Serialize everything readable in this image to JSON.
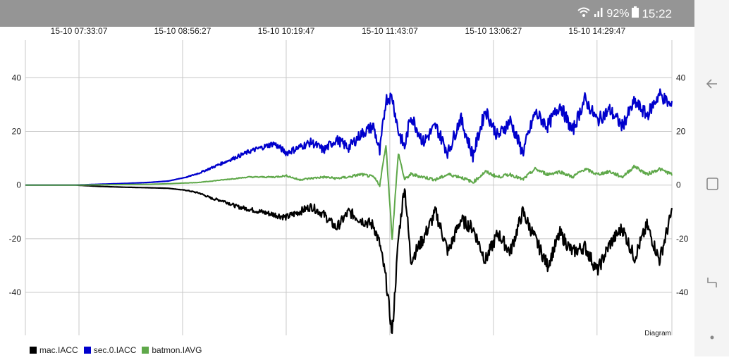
{
  "status": {
    "battery": "92%",
    "time": "15:22"
  },
  "colors": {
    "status_bg": "#959595",
    "nav_bg": "#f4f4f4",
    "grid": "#c8c8c8",
    "axis_text": "#222222"
  },
  "icons": {
    "wifi": "wifi-icon",
    "signal": "signal-icon",
    "battery": "battery-icon",
    "back": "back-arrow-icon",
    "recents": "recents-icon",
    "home": "home-icon",
    "menu_dot": "dot-icon"
  },
  "chart_data": {
    "type": "line",
    "title": "",
    "annotation": "Diagram",
    "x_tick_labels": [
      "15-10 07:33:07",
      "15-10 08:56:27",
      "15-10 10:19:47",
      "15-10 11:43:07",
      "15-10 13:06:27",
      "15-10 14:29:47"
    ],
    "x_range": [
      "15-10 06:50",
      "15-10 15:30"
    ],
    "y_ticks": [
      -40,
      -20,
      0,
      20,
      40
    ],
    "ylim": [
      -56,
      54
    ],
    "grid": true,
    "legend_position": "bottom-left",
    "series": [
      {
        "name": "mac.IACC",
        "color": "#000000",
        "x": [
          "06:50",
          "07:30",
          "07:50",
          "08:10",
          "08:30",
          "08:45",
          "09:00",
          "09:10",
          "09:20",
          "09:30",
          "09:40",
          "09:50",
          "10:00",
          "10:10",
          "10:20",
          "10:30",
          "10:40",
          "10:50",
          "11:00",
          "11:10",
          "11:20",
          "11:30",
          "11:35",
          "11:40",
          "11:45",
          "11:50",
          "11:55",
          "12:00",
          "12:10",
          "12:20",
          "12:30",
          "12:40",
          "12:50",
          "13:00",
          "13:10",
          "13:20",
          "13:30",
          "13:40",
          "13:50",
          "14:00",
          "14:10",
          "14:20",
          "14:30",
          "14:40",
          "14:50",
          "15:00",
          "15:10",
          "15:20",
          "15:30"
        ],
        "y": [
          0,
          0,
          -0.5,
          -0.8,
          -1,
          -1.2,
          -2,
          -3,
          -5,
          -6,
          -8,
          -9,
          -10,
          -11,
          -12,
          -10,
          -8,
          -11,
          -16,
          -10,
          -13,
          -15,
          -22,
          -35,
          -56,
          -20,
          0,
          -28,
          -20,
          -10,
          -25,
          -13,
          -16,
          -28,
          -18,
          -25,
          -10,
          -20,
          -30,
          -18,
          -25,
          -23,
          -32,
          -22,
          -16,
          -27,
          -15,
          -28,
          -10
        ]
      },
      {
        "name": "sec.0.IACC",
        "color": "#0000cc",
        "x": [
          "06:50",
          "07:30",
          "07:50",
          "08:10",
          "08:30",
          "08:45",
          "09:00",
          "09:10",
          "09:20",
          "09:30",
          "09:40",
          "09:50",
          "10:00",
          "10:10",
          "10:20",
          "10:30",
          "10:40",
          "10:50",
          "11:00",
          "11:10",
          "11:20",
          "11:30",
          "11:35",
          "11:40",
          "11:45",
          "11:50",
          "11:55",
          "12:00",
          "12:10",
          "12:20",
          "12:30",
          "12:40",
          "12:50",
          "13:00",
          "13:10",
          "13:20",
          "13:30",
          "13:40",
          "13:50",
          "14:00",
          "14:10",
          "14:20",
          "14:30",
          "14:40",
          "14:50",
          "15:00",
          "15:10",
          "15:20",
          "15:30"
        ],
        "y": [
          0,
          0,
          0.3,
          0.6,
          1,
          1.5,
          3,
          4.5,
          6.5,
          8.5,
          10.5,
          12.5,
          14,
          15.5,
          12,
          14,
          16,
          13,
          17,
          14,
          19,
          22,
          12,
          32,
          33,
          20,
          14,
          26,
          16,
          22,
          12,
          25,
          11,
          28,
          18,
          24,
          12,
          27,
          22,
          30,
          20,
          32,
          24,
          28,
          22,
          31,
          26,
          34,
          29
        ]
      },
      {
        "name": "batmon.IAVG",
        "color": "#5fa84a",
        "x": [
          "06:50",
          "07:30",
          "07:50",
          "08:10",
          "08:30",
          "08:45",
          "09:00",
          "09:10",
          "09:20",
          "09:30",
          "09:40",
          "09:50",
          "10:00",
          "10:10",
          "10:20",
          "10:30",
          "10:40",
          "10:50",
          "11:00",
          "11:10",
          "11:20",
          "11:30",
          "11:35",
          "11:40",
          "11:45",
          "11:50",
          "11:55",
          "12:00",
          "12:10",
          "12:20",
          "12:30",
          "12:40",
          "12:50",
          "13:00",
          "13:10",
          "13:20",
          "13:30",
          "13:40",
          "13:50",
          "14:00",
          "14:10",
          "14:20",
          "14:30",
          "14:40",
          "14:50",
          "15:00",
          "15:10",
          "15:20",
          "15:30"
        ],
        "y": [
          0,
          0,
          0.1,
          0.2,
          0.3,
          0.5,
          0.8,
          1,
          1.5,
          2,
          2.5,
          3,
          3,
          3,
          3.5,
          2,
          2.5,
          3,
          2.5,
          3,
          4,
          3,
          0,
          15,
          -20,
          12,
          2,
          4,
          3,
          2,
          4,
          3,
          1,
          5,
          3,
          4,
          2,
          6,
          4,
          5,
          3,
          6,
          4,
          5,
          3,
          7,
          4,
          6,
          4
        ]
      }
    ]
  }
}
